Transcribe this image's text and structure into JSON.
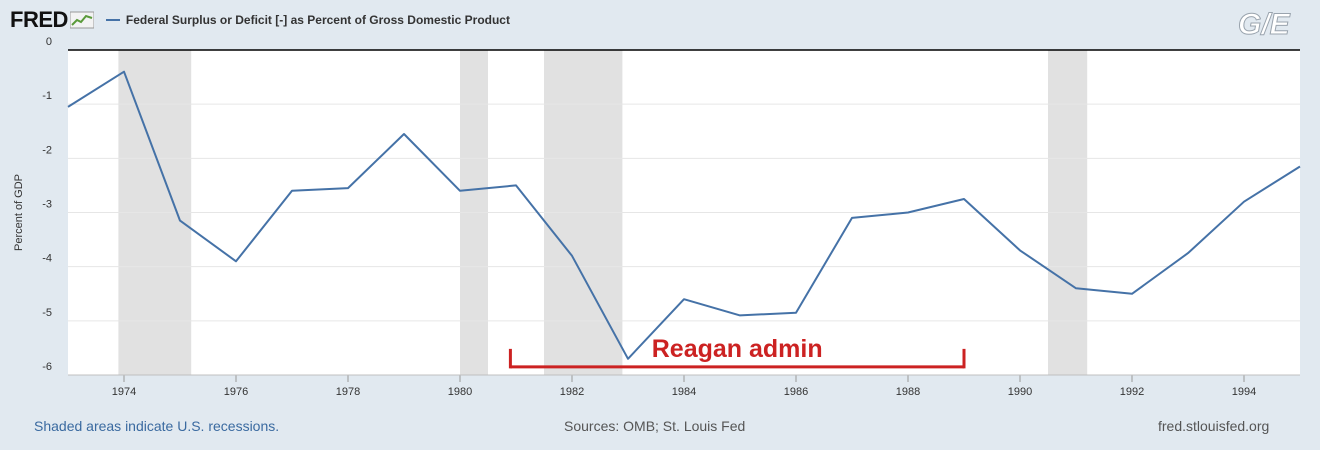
{
  "header": {
    "logo_text": "FRED",
    "legend_label": "Federal Surplus or Deficit [-] as Percent of Gross Domestic Product",
    "brand_mark": "G/E"
  },
  "footer": {
    "recession_note": "Shaded areas indicate U.S. recessions.",
    "sources": "Sources: OMB; St. Louis Fed",
    "site": "fred.stlouisfed.org"
  },
  "colors": {
    "series": "#4572a7",
    "recession": "#e1e1e1",
    "annotation": "#cc2222",
    "background": "#e1e9f0"
  },
  "chart_data": {
    "type": "line",
    "title": "Federal Surplus or Deficit [-] as Percent of Gross Domestic Product",
    "xlabel": "",
    "ylabel": "Percent of GDP",
    "xlim": [
      1973,
      1995
    ],
    "ylim": [
      -6,
      0
    ],
    "x_ticks": [
      1974,
      1976,
      1978,
      1980,
      1982,
      1984,
      1986,
      1988,
      1990,
      1992,
      1994
    ],
    "y_ticks": [
      0,
      -1,
      -2,
      -3,
      -4,
      -5,
      -6
    ],
    "series": [
      {
        "name": "Federal Surplus or Deficit [-] as Percent of Gross Domestic Product",
        "x": [
          1973,
          1974,
          1975,
          1976,
          1977,
          1978,
          1979,
          1980,
          1981,
          1982,
          1983,
          1984,
          1985,
          1986,
          1987,
          1988,
          1989,
          1990,
          1991,
          1992,
          1993,
          1994,
          1995
        ],
        "values": [
          -1.05,
          -0.4,
          -3.15,
          -3.9,
          -2.6,
          -2.55,
          -1.55,
          -2.6,
          -2.5,
          -3.8,
          -5.7,
          -4.6,
          -4.9,
          -4.85,
          -3.1,
          -3.0,
          -2.75,
          -3.7,
          -4.4,
          -4.5,
          -3.75,
          -2.8,
          -2.15
        ]
      }
    ],
    "recessions": [
      [
        1973.9,
        1975.2
      ],
      [
        1980.0,
        1980.5
      ],
      [
        1981.5,
        1982.9
      ],
      [
        1990.5,
        1991.2
      ]
    ],
    "annotation": {
      "text": "Reagan admin",
      "x_start": 1980.9,
      "x_end": 1989.0,
      "y": -5.85
    }
  }
}
